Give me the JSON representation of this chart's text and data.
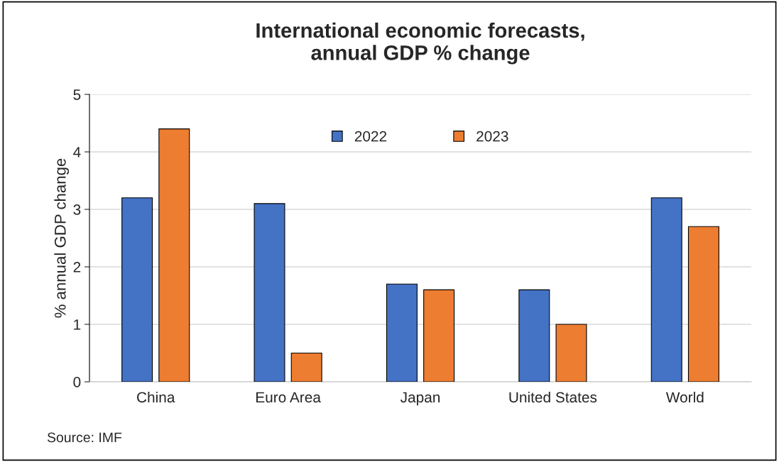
{
  "chart_data": {
    "type": "bar",
    "title": "International economic forecasts,\nannual GDP % change",
    "ylabel": "% annual GDP change",
    "categories": [
      "China",
      "Euro Area",
      "Japan",
      "United States",
      "World"
    ],
    "series": [
      {
        "name": "2022",
        "color": "#4472c4",
        "values": [
          3.2,
          3.1,
          1.7,
          1.6,
          3.2
        ]
      },
      {
        "name": "2023",
        "color": "#ed7d31",
        "values": [
          4.4,
          0.5,
          1.6,
          1.0,
          2.7
        ]
      }
    ],
    "ylim": [
      0,
      5
    ],
    "yticks": [
      0,
      1,
      2,
      3,
      4,
      5
    ],
    "grid": "y",
    "legend": "top",
    "annotations": [
      "Source: IMF"
    ]
  }
}
